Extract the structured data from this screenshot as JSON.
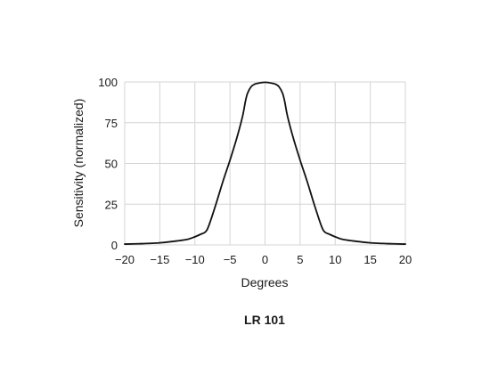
{
  "chart_data": {
    "type": "line",
    "title": "",
    "caption": "LR 101",
    "xlabel": "Degrees",
    "ylabel": "Sensitivity (normalized)",
    "xlim": [
      -20,
      20
    ],
    "ylim": [
      0,
      100
    ],
    "x_ticks": [
      -20,
      -15,
      -10,
      -5,
      0,
      5,
      10,
      15,
      20
    ],
    "x_tick_labels": [
      "−20",
      "−15",
      "−10",
      "−5",
      "0",
      "5",
      "10",
      "15",
      "20"
    ],
    "y_ticks": [
      0,
      25,
      50,
      75,
      100
    ],
    "y_tick_labels": [
      "0",
      "25",
      "50",
      "75",
      "100"
    ],
    "grid": true,
    "series": [
      {
        "x": [
          -20,
          -17.5,
          -15,
          -12.5,
          -11,
          -10,
          -9.2,
          -8.5,
          -8,
          -7,
          -6,
          -5,
          -4,
          -3.2,
          -2.8,
          -2.5,
          -2,
          -1.5,
          -1,
          -0.5,
          0,
          0.5,
          1,
          1.5,
          2,
          2.5,
          2.8,
          3.2,
          4,
          5,
          6,
          7,
          8,
          8.5,
          9.2,
          10,
          11,
          12.5,
          15,
          17.5,
          20
        ],
        "y": [
          0.5,
          0.8,
          1.3,
          2.5,
          3.5,
          5,
          6.5,
          8,
          12,
          25,
          39,
          52,
          66,
          79,
          88,
          93,
          97,
          98.6,
          99.2,
          99.6,
          99.8,
          99.6,
          99.2,
          98.6,
          97,
          93,
          88,
          79,
          66,
          52,
          39,
          25,
          12,
          8,
          6.5,
          5,
          3.5,
          2.5,
          1.3,
          0.8,
          0.5
        ]
      }
    ],
    "colors": {
      "line": "#111111",
      "grid": "#d4d4d4",
      "text": "#1a1a1a"
    }
  }
}
